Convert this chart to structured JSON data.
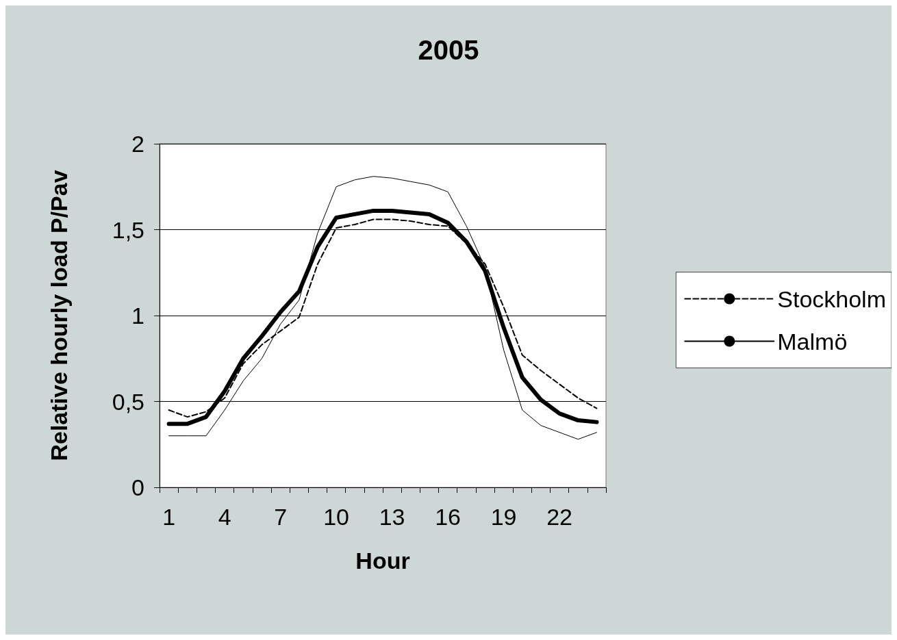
{
  "chart_data": {
    "type": "line",
    "title": "2005",
    "xlabel": "Hour",
    "ylabel": "Relative hourly load P/Pav",
    "categories": [
      "1",
      null,
      null,
      "4",
      null,
      null,
      "7",
      null,
      null,
      "10",
      null,
      null,
      "13",
      null,
      null,
      "16",
      null,
      null,
      "19",
      null,
      null,
      "22",
      null,
      null
    ],
    "series": [
      {
        "color": "#000000",
        "line_style": "solid",
        "values": [
          0.37,
          0.37,
          0.41,
          0.56,
          0.75,
          0.88,
          1.02,
          1.14,
          1.4,
          1.57,
          1.59,
          1.61,
          1.61,
          1.6,
          1.59,
          1.54,
          1.43,
          1.26,
          0.93,
          0.64,
          0.51,
          0.43,
          0.39,
          0.38
        ]
      },
      {
        "name": "Stockholm",
        "color": "#000000",
        "line_style": "dashed",
        "values": [
          0.45,
          0.41,
          0.44,
          0.52,
          0.72,
          0.83,
          0.91,
          0.99,
          1.3,
          1.51,
          1.53,
          1.56,
          1.56,
          1.55,
          1.53,
          1.52,
          1.42,
          1.3,
          1.05,
          0.77,
          0.68,
          0.6,
          0.52,
          0.46
        ]
      },
      {
        "name": "Malmö",
        "color": "#000000",
        "line_style": "solid",
        "values": [
          0.3,
          0.3,
          0.3,
          0.45,
          0.62,
          0.75,
          0.95,
          1.09,
          1.48,
          1.75,
          1.79,
          1.81,
          1.8,
          1.78,
          1.76,
          1.72,
          1.52,
          1.28,
          0.8,
          0.45,
          0.36,
          0.32,
          0.28,
          0.32
        ]
      }
    ],
    "ylim": [
      0,
      2
    ],
    "yticks": [
      0,
      {
        "value": 0.5,
        "label": "0,5"
      },
      1,
      {
        "value": 1.5,
        "label": "1,5"
      },
      2
    ],
    "grid": "y",
    "legend": "right",
    "marker": "none"
  }
}
